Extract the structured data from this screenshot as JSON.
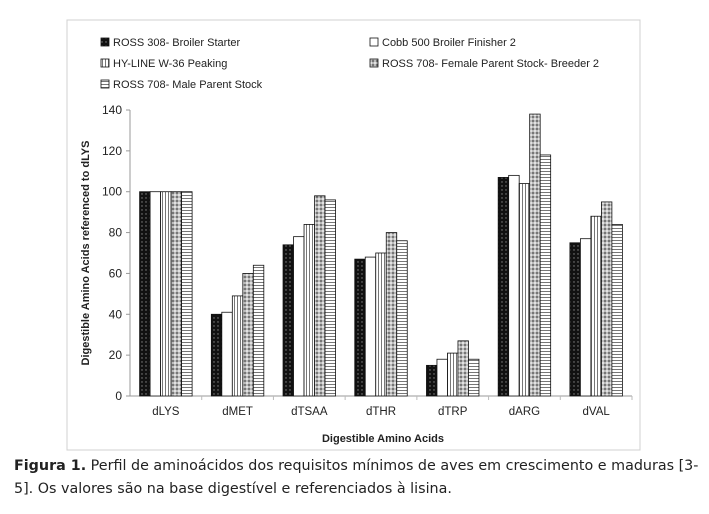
{
  "chart_data": {
    "type": "bar",
    "title": "",
    "xlabel": "Digestible Amino Acids",
    "ylabel": "Digestible Amino Acids referenced to dLYS",
    "ylim": [
      0,
      140
    ],
    "yticks": [
      0,
      20,
      40,
      60,
      80,
      100,
      120,
      140
    ],
    "grid": false,
    "legend_position": "top",
    "categories": [
      "dLYS",
      "dMET",
      "dTSAA",
      "dTHR",
      "dTRP",
      "dARG",
      "dVAL"
    ],
    "series": [
      {
        "name": "ROSS 308- Broiler Starter",
        "pattern": "dark-dots",
        "values": [
          100,
          40,
          74,
          67,
          15,
          107,
          75
        ]
      },
      {
        "name": "Cobb 500 Broiler Finisher 2",
        "pattern": "white",
        "values": [
          100,
          41,
          78,
          68,
          18,
          108,
          77
        ]
      },
      {
        "name": "HY-LINE W-36 Peaking",
        "pattern": "vertical-stripes",
        "values": [
          100,
          49,
          84,
          70,
          21,
          104,
          88
        ]
      },
      {
        "name": "ROSS 708- Female Parent Stock- Breeder 2",
        "pattern": "speckled",
        "values": [
          100,
          60,
          98,
          80,
          27,
          138,
          95
        ]
      },
      {
        "name": "ROSS 708- Male Parent Stock",
        "pattern": "horizontal-stripes",
        "values": [
          100,
          64,
          96,
          76,
          18,
          118,
          84
        ]
      }
    ]
  },
  "caption": {
    "label": "Figura 1.",
    "text": " Perfil de aminoácidos dos requisitos mínimos de aves em crescimento e maduras [3-5]. Os valores são na base digestível e referenciados à lisina."
  }
}
